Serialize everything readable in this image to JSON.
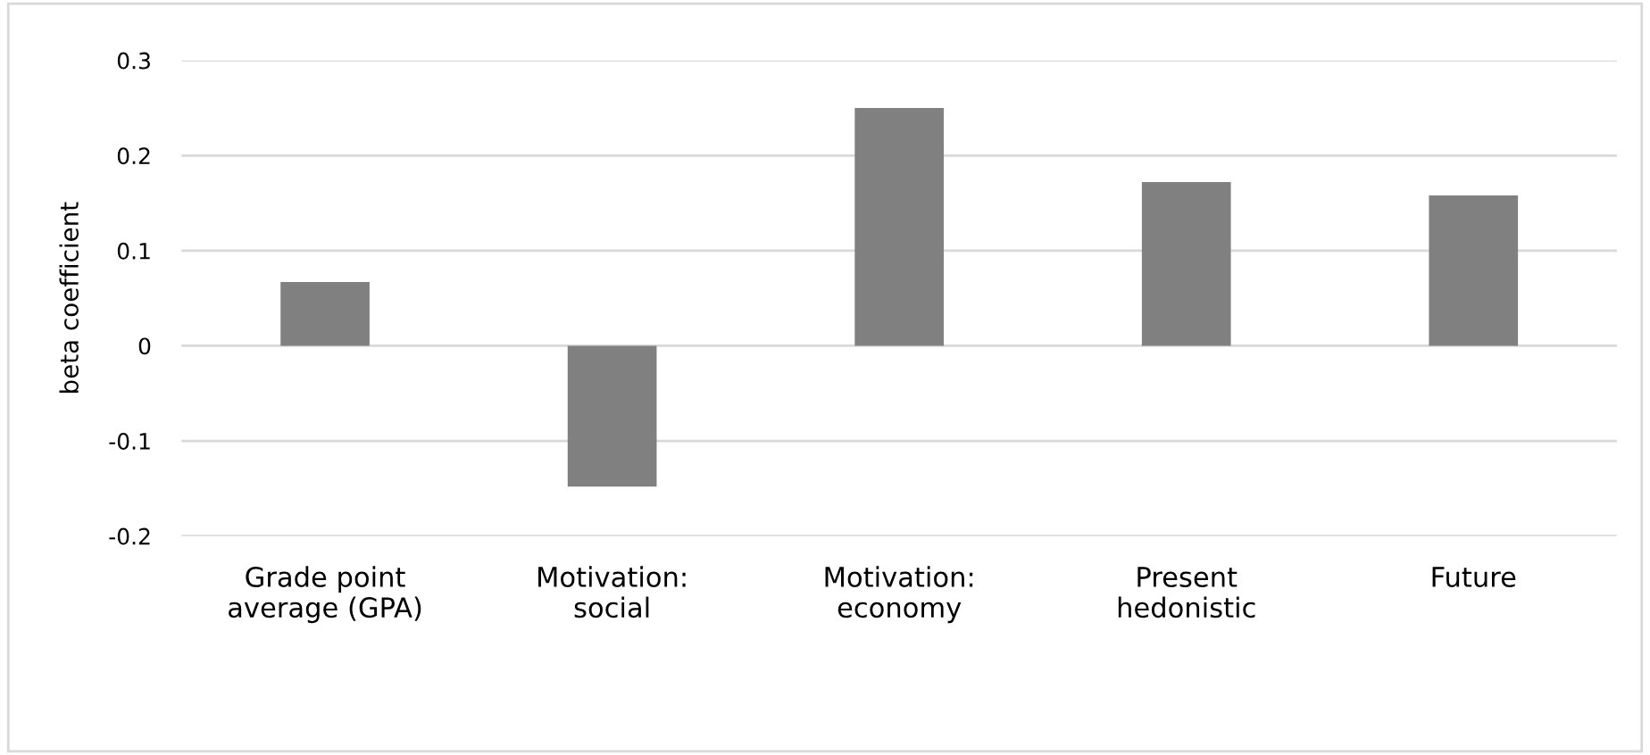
{
  "chart_data": {
    "type": "bar",
    "ylabel": "beta coefficient",
    "categories": [
      "Grade point\naverage (GPA)",
      "Motivation:\nsocial",
      "Motivation:\neconomy",
      "Present\nhedonistic",
      "Future"
    ],
    "values": [
      0.067,
      -0.148,
      0.25,
      0.172,
      0.158
    ],
    "color": "#808080",
    "ylim": [
      -0.2,
      0.3
    ],
    "yticks": [
      -0.2,
      -0.1,
      0,
      0.1,
      0.2,
      0.3
    ],
    "grid": "y"
  }
}
